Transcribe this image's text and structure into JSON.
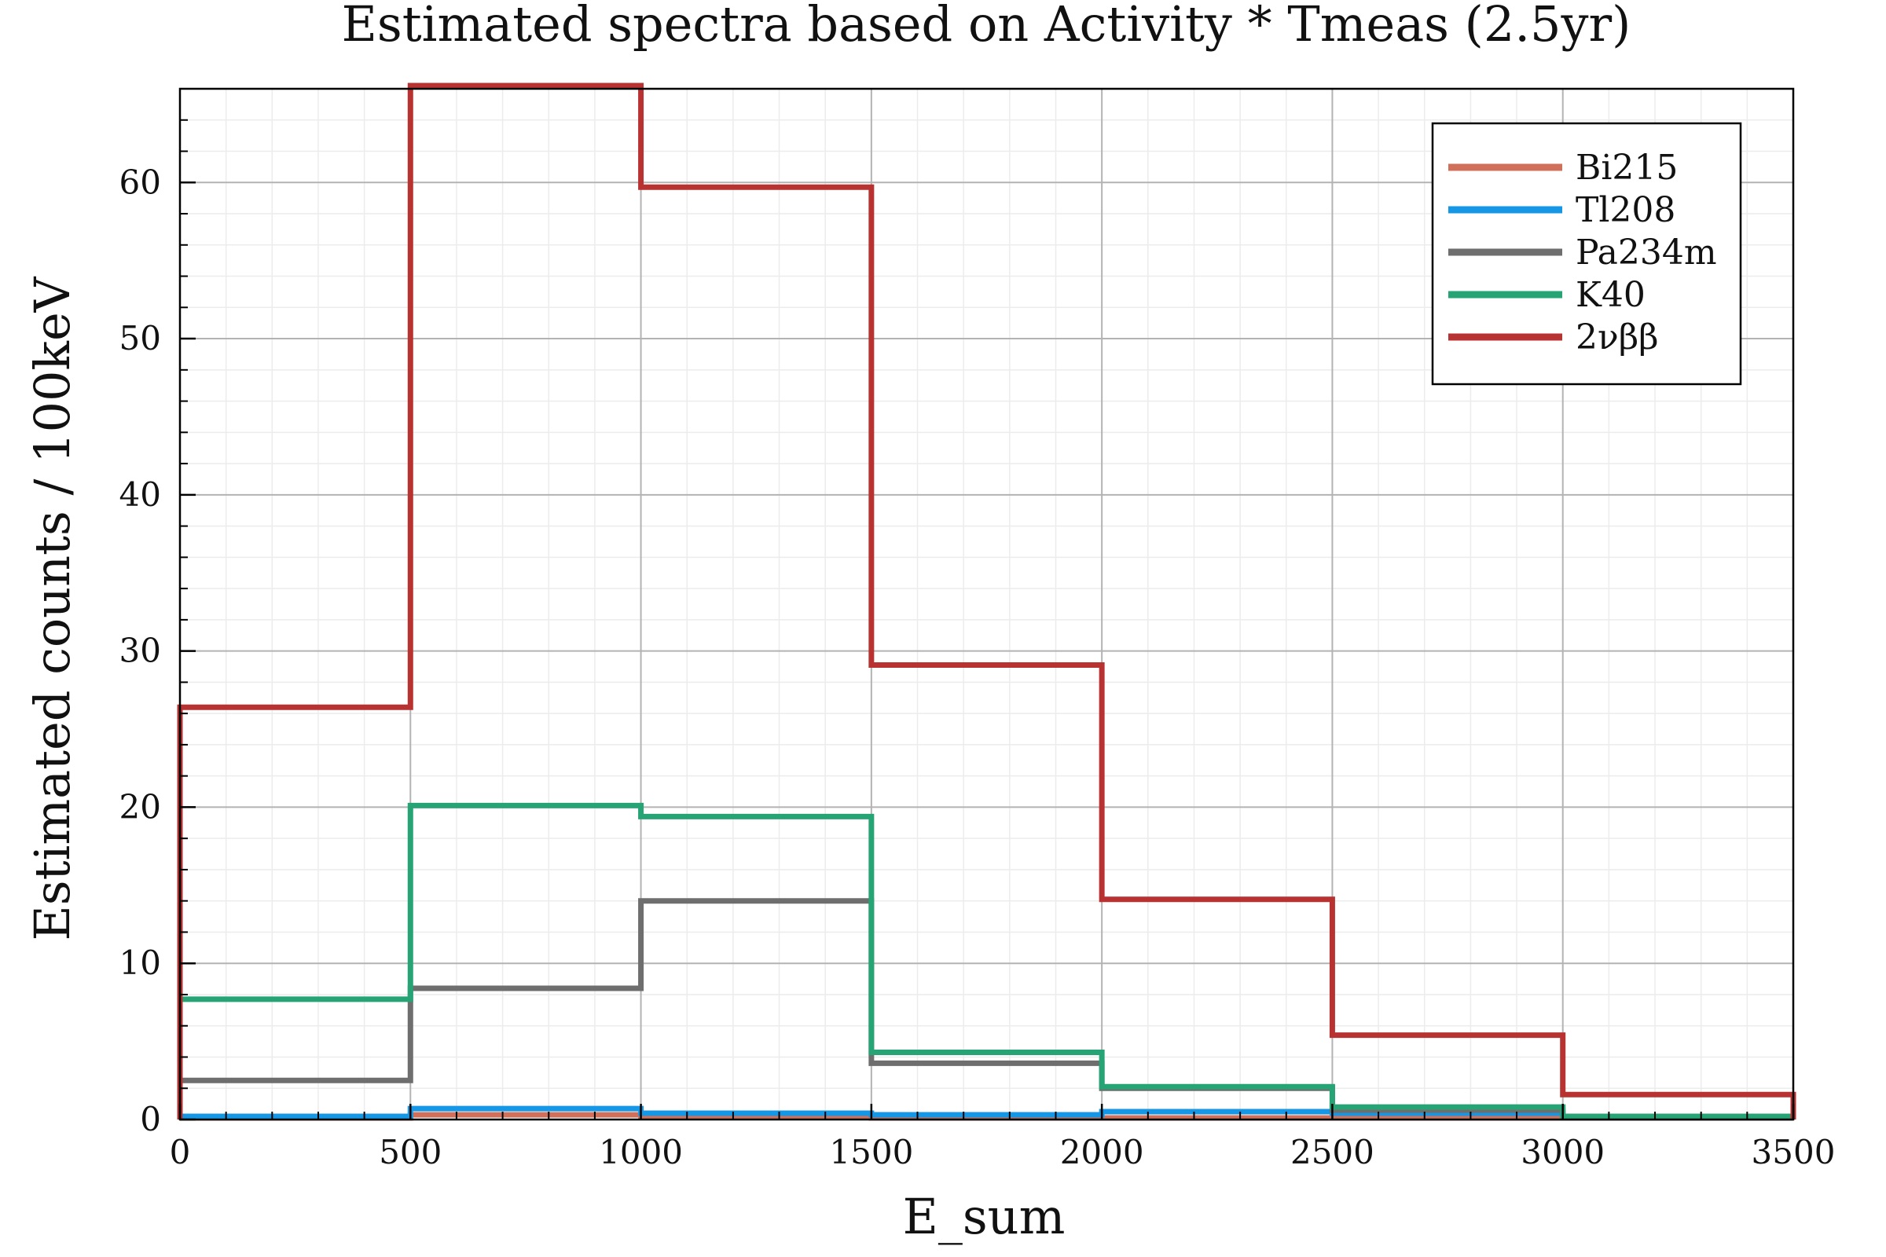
{
  "chart_data": {
    "type": "line",
    "title": "Estimated spectra based on Activity * Tmeas (2.5yr)",
    "xlabel": "E_sum",
    "ylabel": "Estimated counts / 100keV",
    "xlim": [
      0,
      3500
    ],
    "ylim": [
      0,
      66
    ],
    "xticks": [
      0,
      500,
      1000,
      1500,
      2000,
      2500,
      3000,
      3500
    ],
    "xtick_labels": [
      "0",
      "500",
      "1000",
      "1500",
      "2000",
      "2500",
      "3000",
      "3500"
    ],
    "yticks": [
      0,
      10,
      20,
      30,
      40,
      50,
      60
    ],
    "ytick_labels": [
      "0",
      "10",
      "20",
      "30",
      "40",
      "50",
      "60"
    ],
    "grid": true,
    "legend_position": "top-right",
    "bin_edges": [
      0,
      500,
      1000,
      1500,
      2000,
      2500,
      3000,
      3500
    ],
    "series": [
      {
        "name": "Bi215",
        "color": "#d0705a",
        "values": [
          0.1,
          0.3,
          0.2,
          0.1,
          0.1,
          0.1,
          0.1
        ]
      },
      {
        "name": "Tl208",
        "color": "#1597e5",
        "values": [
          0.2,
          0.7,
          0.4,
          0.3,
          0.5,
          0.4,
          0.2
        ]
      },
      {
        "name": "Pa234m",
        "color": "#6e6e6e",
        "values": [
          2.5,
          8.4,
          14.0,
          3.6,
          2.0,
          0.6,
          0.1
        ]
      },
      {
        "name": "K40",
        "color": "#26a475",
        "values": [
          7.7,
          20.1,
          19.4,
          4.3,
          2.1,
          0.8,
          0.2
        ]
      },
      {
        "name": "2νββ",
        "color": "#b93232",
        "values": [
          26.4,
          66.2,
          59.7,
          29.1,
          14.1,
          5.4,
          1.6
        ]
      }
    ]
  }
}
